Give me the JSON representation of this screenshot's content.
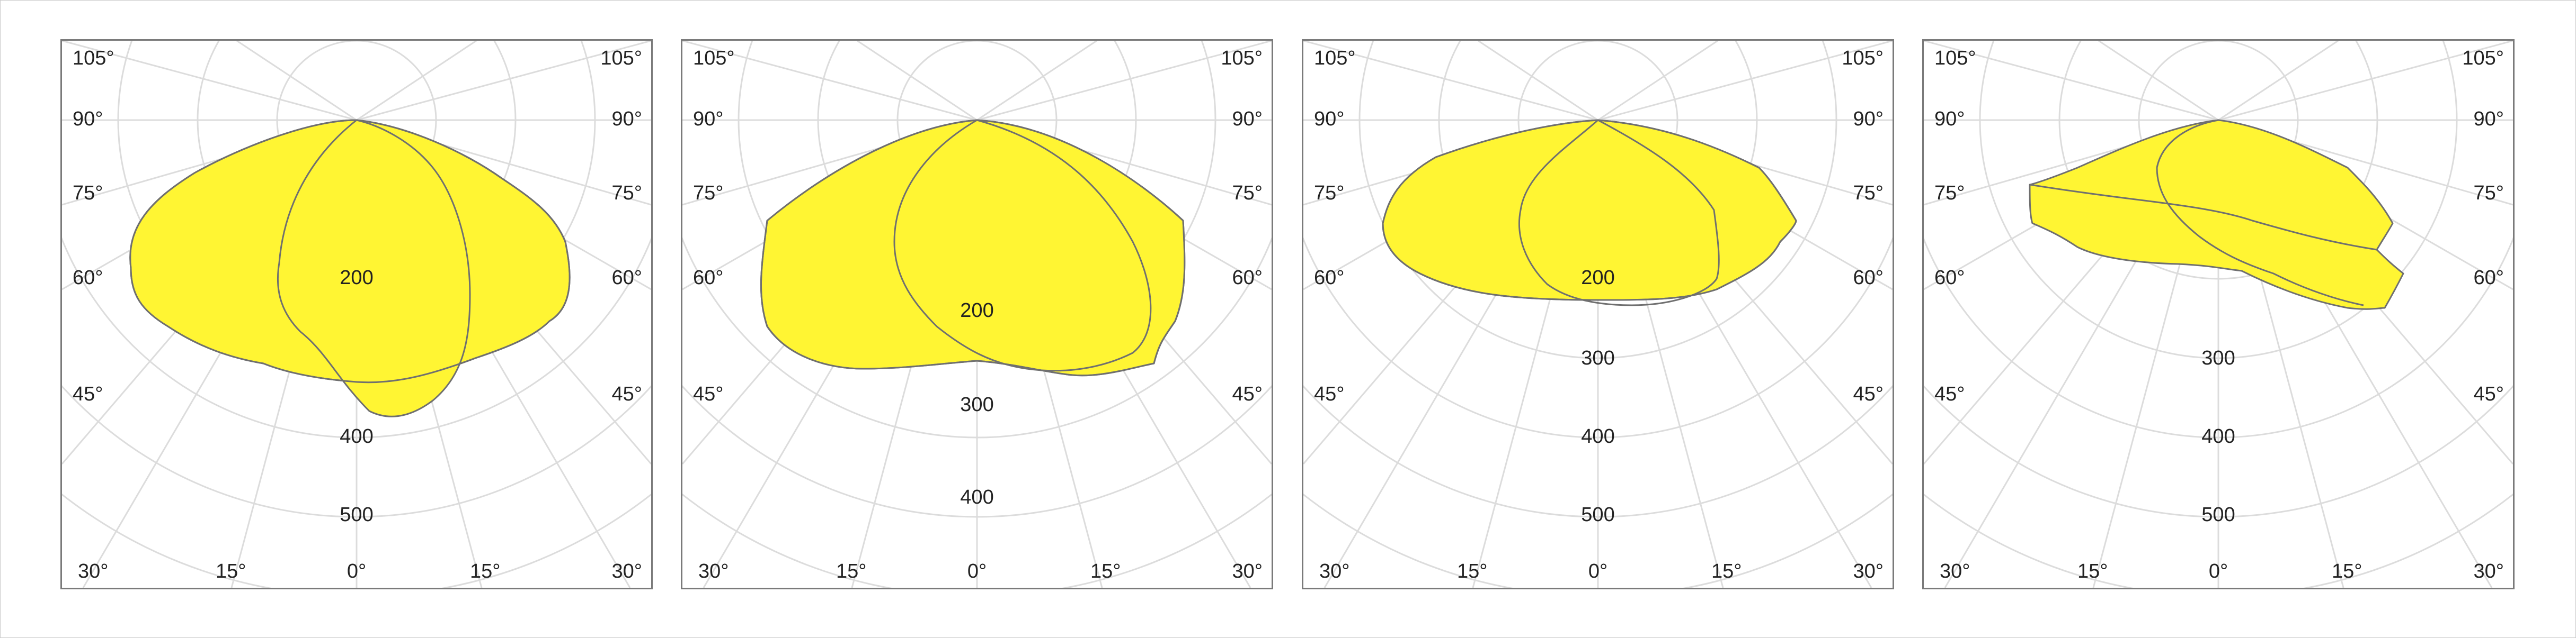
{
  "chart_data": [
    {
      "type": "polar",
      "angle_labels": {
        "left": [
          "105°",
          "90°",
          "75°",
          "60°",
          "45°"
        ],
        "right": [
          "105°",
          "90°",
          "75°",
          "60°",
          "45°"
        ],
        "bottom": [
          "30°",
          "15°",
          "0°",
          "15°",
          "30°"
        ]
      },
      "radial_labels": [
        "200",
        "400",
        "500"
      ],
      "radial_values": [
        200,
        400,
        500
      ],
      "series": [
        {
          "curve": "C0-C180",
          "r": [
            450,
            460,
            445,
            420,
            400,
            380,
            360,
            330,
            290,
            250,
            200,
            160,
            130
          ]
        },
        {
          "curve": "C90-C270",
          "r": [
            450,
            480,
            470,
            440,
            400,
            360,
            320,
            280,
            240,
            200,
            160,
            130,
            120
          ]
        }
      ]
    },
    {
      "type": "polar",
      "angle_labels": {
        "left": [
          "105°",
          "90°",
          "75°",
          "60°",
          "45°"
        ],
        "right": [
          "105°",
          "90°",
          "75°",
          "60°",
          "45°"
        ],
        "bottom": [
          "30°",
          "15°",
          "0°",
          "15°",
          "30°"
        ]
      },
      "radial_labels": [
        "200",
        "300",
        "400"
      ],
      "radial_values": [
        200,
        300,
        400
      ],
      "series": [
        {
          "curve": "C0-C180",
          "r": [
            370,
            380,
            380,
            385,
            395,
            410,
            420,
            430,
            440,
            440,
            430,
            400,
            360
          ]
        },
        {
          "curve": "C90-C270",
          "r": [
            360,
            380,
            390,
            395,
            400,
            405,
            410,
            420,
            430,
            440,
            440,
            430,
            400
          ]
        }
      ]
    },
    {
      "type": "polar",
      "angle_labels": {
        "left": [
          "105°",
          "90°",
          "75°",
          "60°",
          "45°"
        ],
        "right": [
          "105°",
          "90°",
          "75°",
          "60°",
          "45°"
        ],
        "bottom": [
          "30°",
          "15°",
          "0°",
          "15°",
          "30°"
        ]
      },
      "radial_labels": [
        "200",
        "300",
        "400",
        "500"
      ],
      "radial_values": [
        200,
        300,
        400,
        500
      ],
      "series": [
        {
          "curve": "C0-C180",
          "r": [
            240,
            245,
            250,
            255,
            265,
            280,
            300,
            320,
            340,
            330,
            300,
            250,
            200
          ]
        },
        {
          "curve": "C90-C270",
          "r": [
            240,
            240,
            235,
            225,
            215,
            200,
            185,
            170,
            155,
            140,
            125,
            110,
            100
          ]
        }
      ]
    },
    {
      "type": "polar",
      "angle_labels": {
        "left": [
          "105°",
          "90°",
          "75°",
          "60°",
          "45°"
        ],
        "right": [
          "105°",
          "90°",
          "75°",
          "60°",
          "45°"
        ],
        "bottom": [
          "30°",
          "15°",
          "0°",
          "15°",
          "30°"
        ]
      },
      "radial_labels": [
        "300",
        "400",
        "500"
      ],
      "radial_values": [
        300,
        400,
        500
      ],
      "series": [
        {
          "curve": "C0-C180",
          "r": [
            80,
            120,
            160,
            190,
            215,
            240,
            260,
            270,
            275,
            270,
            260,
            240,
            200
          ]
        },
        {
          "curve": "C90-C270",
          "r": [
            60,
            70,
            80,
            95,
            110,
            125,
            140,
            150,
            160,
            165,
            160,
            150,
            130
          ]
        }
      ]
    }
  ]
}
